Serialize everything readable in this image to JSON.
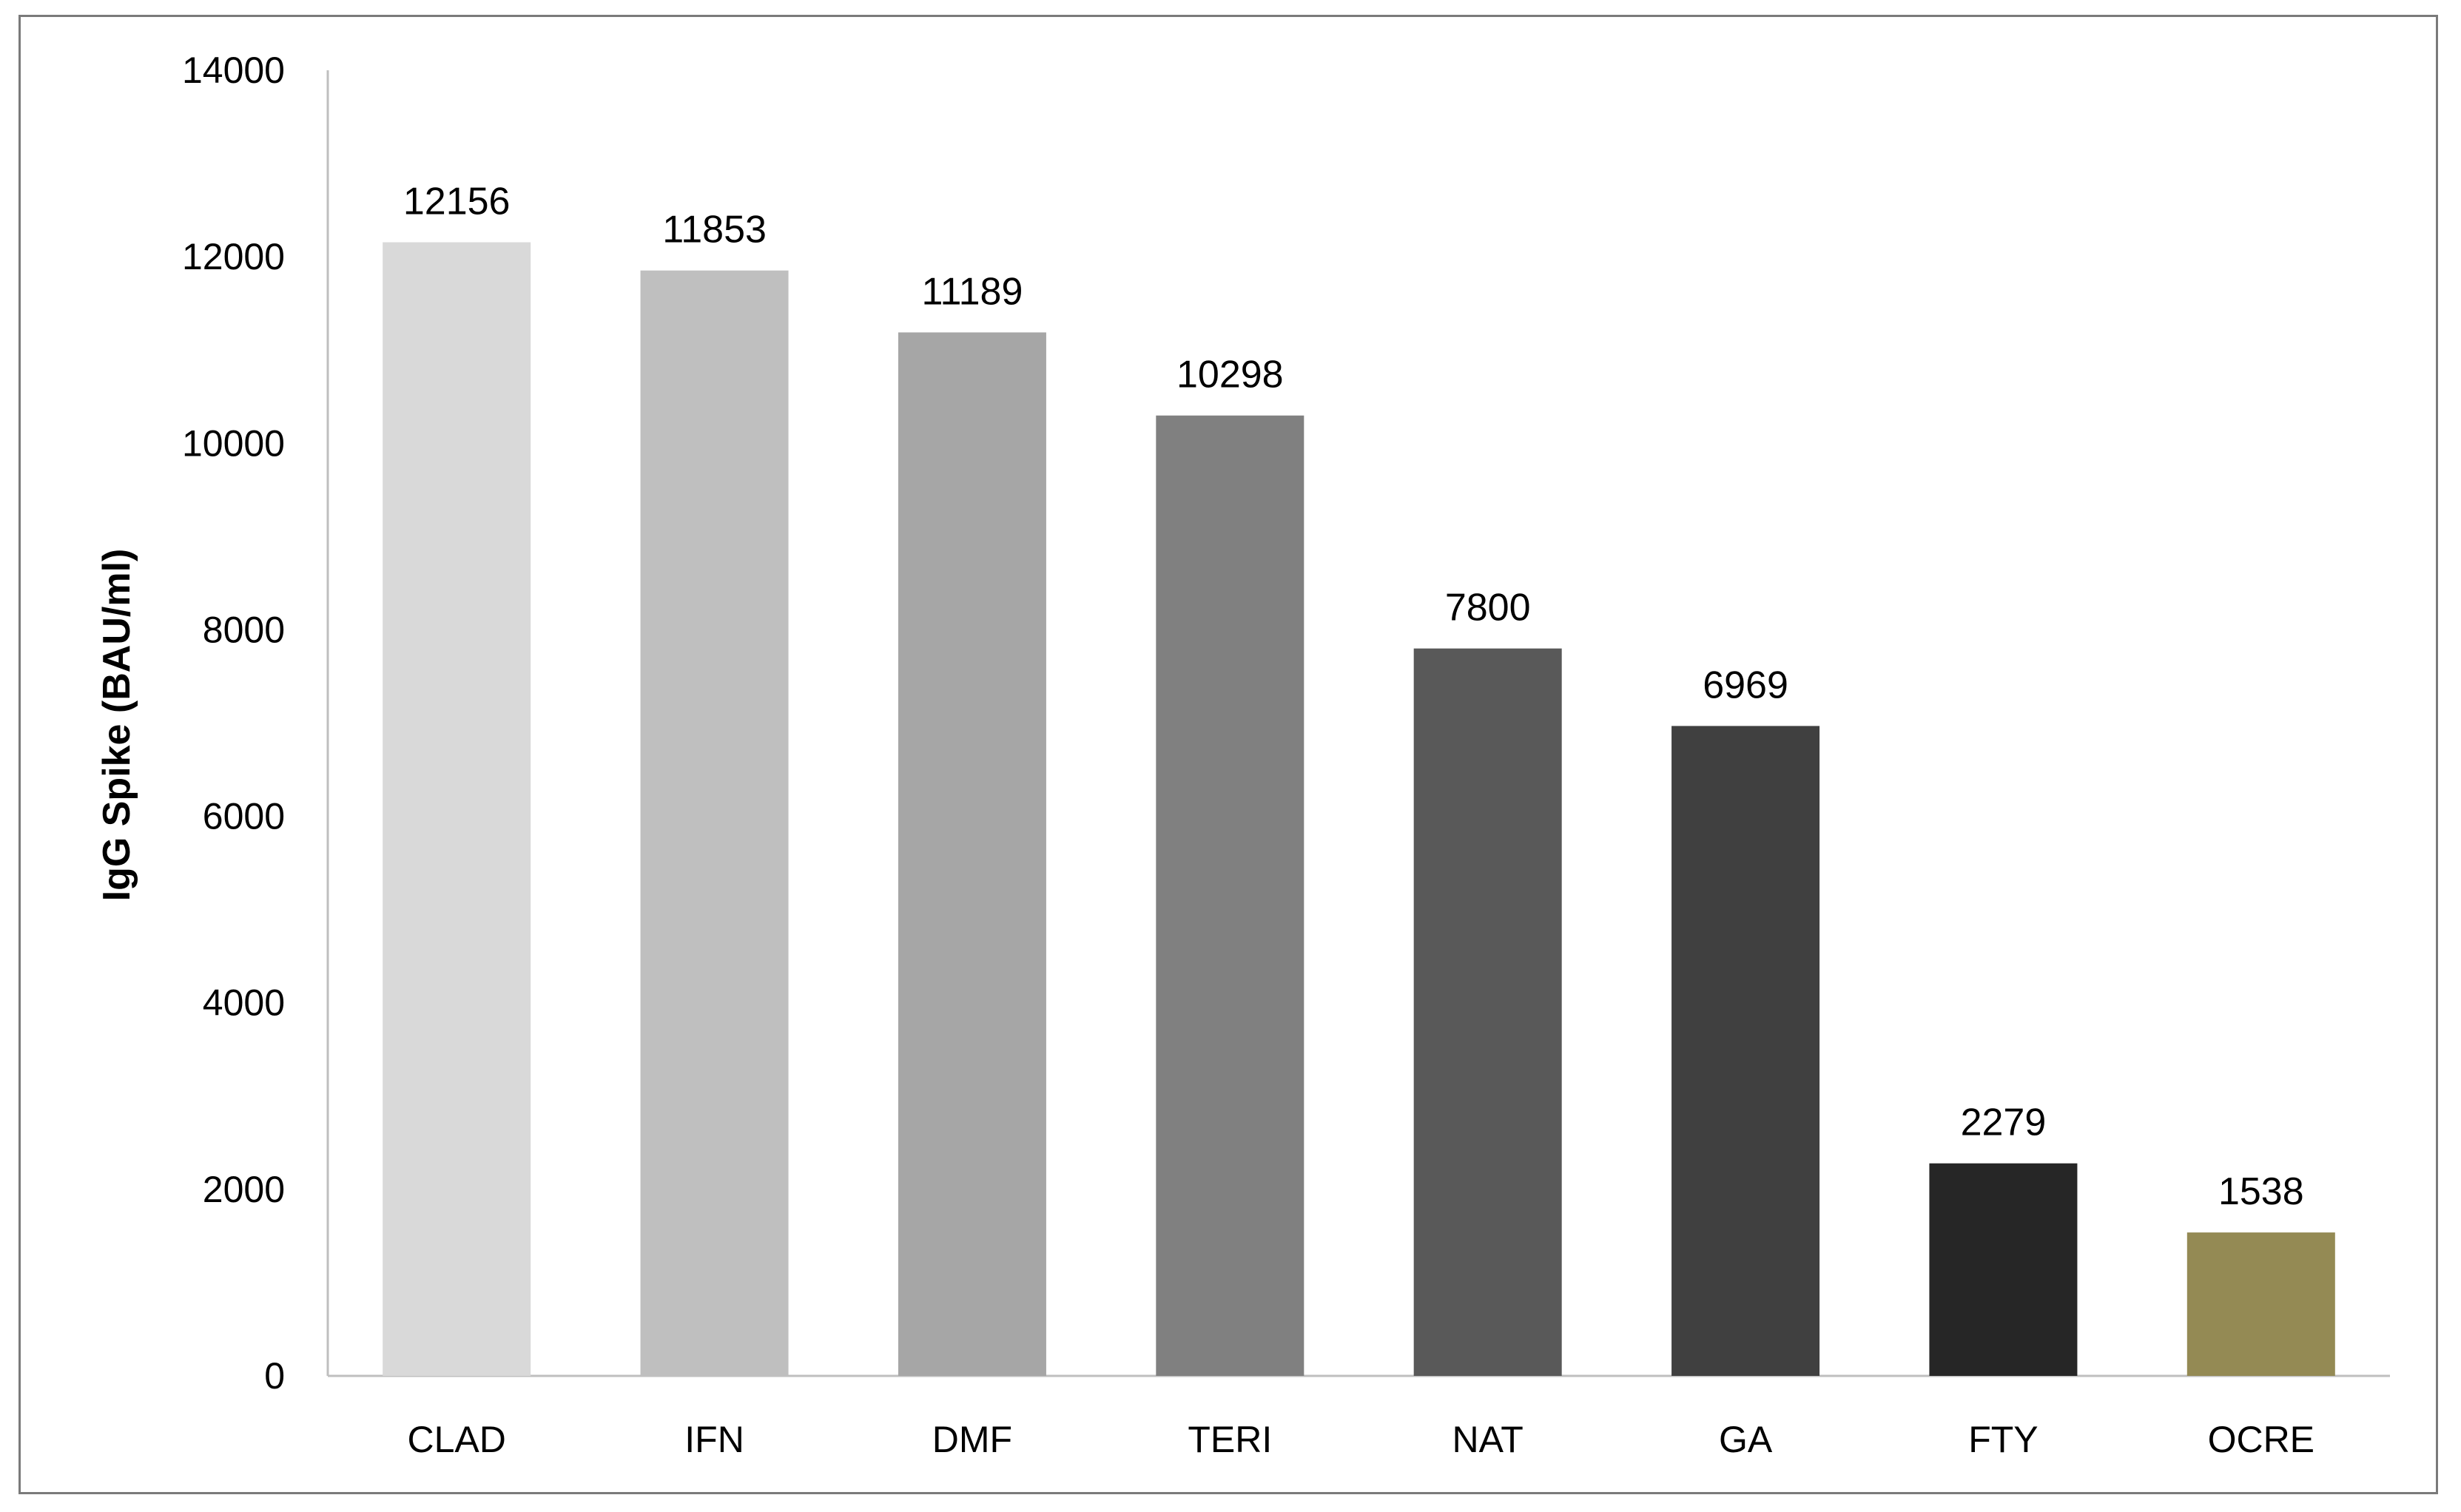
{
  "chart_data": {
    "type": "bar",
    "title": "",
    "xlabel": "",
    "ylabel": "IgG Spike (BAU/ml)",
    "ylim": [
      0,
      14000
    ],
    "yticks": [
      0,
      2000,
      4000,
      6000,
      8000,
      10000,
      12000,
      14000
    ],
    "ytick_labels": [
      "0",
      "2000",
      "4000",
      "6000",
      "8000",
      "10000",
      "12000",
      "14000"
    ],
    "categories": [
      "CLAD",
      "IFN",
      "DMF",
      "TERI",
      "NAT",
      "GA",
      "FTY",
      "OCRE"
    ],
    "values": [
      12156,
      11853,
      11189,
      10298,
      7800,
      6969,
      2279,
      1538
    ],
    "data_labels": [
      "12156",
      "11853",
      "11189",
      "10298",
      "7800",
      "6969",
      "2279",
      "1538"
    ],
    "colors": [
      "#d9d9d9",
      "#bfbfbf",
      "#a6a6a6",
      "#808080",
      "#595959",
      "#404040",
      "#262626",
      "#948a54"
    ],
    "grid": false,
    "legend": "none"
  }
}
